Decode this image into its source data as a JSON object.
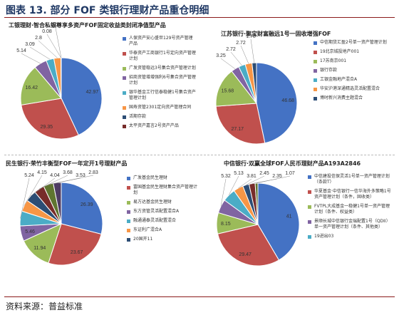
{
  "figure": {
    "title": "图表 13. 部分 FOF 类银行理财产品重仓明细",
    "source": "资料来源：普益标准"
  },
  "chart_data": [
    {
      "type": "pie",
      "title": "工银理财·智合私银尊享多资产FOF固定收益类封闭净值型产品",
      "legend_position": "right",
      "slices": [
        {
          "name": "人保资产安心盛世129号资产管理产品",
          "value": 42.97,
          "color": "#4472c4"
        },
        {
          "name": "华泰资产工商银行1号定向资产管理计划",
          "value": 29.35,
          "color": "#c0504d"
        },
        {
          "name": "广发资管稳远3号集合资产管理计划",
          "value": 16.42,
          "color": "#9bbb59"
        },
        {
          "name": "招商资管增增强利6号集合资产管理计划",
          "value": 5.14,
          "color": "#8064a2"
        },
        {
          "name": "银华基金工行信泰稳健1号集合资产管理计划",
          "value": 3.09,
          "color": "#4bacc6"
        },
        {
          "name": "国寿资管2301定向资产管理合同",
          "value": 2.8,
          "color": "#f79646"
        },
        {
          "name": "活期存款",
          "value": 0.08,
          "color": "#2c4d75"
        },
        {
          "name": "太平资产嘉言2号资产产品",
          "value": 0.06,
          "color": "#772c2a"
        }
      ]
    },
    {
      "type": "pie",
      "title": "江苏银行·聚宝财富融远1号一固收增强FOF",
      "legend_position": "right",
      "slices": [
        {
          "name": "中信期货汇盈2号单一资产管理计划",
          "value": 46.68,
          "color": "#4472c4"
        },
        {
          "name": "19北京城投地产001",
          "value": 27.17,
          "color": "#c0504d"
        },
        {
          "name": "17苏南京001",
          "value": 15.68,
          "color": "#9bbb59"
        },
        {
          "name": "银行存款",
          "value": 3.25,
          "color": "#8064a2"
        },
        {
          "name": "工银金融地产混合A",
          "value": 2.72,
          "color": "#4bacc6"
        },
        {
          "name": "华安沪港深通精选灵活配置混合",
          "value": 2.72,
          "color": "#f79646"
        },
        {
          "name": "博时新兴消费主题混合",
          "value": 1.78,
          "color": "#2c4d75"
        }
      ]
    },
    {
      "type": "pie",
      "title": "民生银行·荣竹丰衡型FOF一年定开1号理财产品",
      "legend_position": "right",
      "slices": [
        {
          "name": "广发基金民生理财",
          "value": 26.39,
          "color": "#4472c4"
        },
        {
          "name": "富国基金民生理财集合资产管理计划",
          "value": 23.67,
          "color": "#c0504d"
        },
        {
          "name": "易方达基金民生理财",
          "value": 11.94,
          "color": "#9bbb59"
        },
        {
          "name": "东方资管灵活配置混合A",
          "value": 5.46,
          "color": "#8064a2"
        },
        {
          "name": "融通通泰灵活配置混合",
          "value": 5.24,
          "color": "#4bacc6"
        },
        {
          "name": "东证利广混合A",
          "value": 4.15,
          "color": "#f79646"
        },
        {
          "name": "20国开11",
          "value": 4.04,
          "color": "#2c4d75"
        },
        {
          "name": "",
          "value": 3.68,
          "color": "#772c2a"
        },
        {
          "name": "",
          "value": 3.53,
          "color": "#5f7530"
        },
        {
          "name": "",
          "value": 2.83,
          "color": "#4d3b62"
        }
      ]
    },
    {
      "type": "pie",
      "title": "中信银行·双赢全球FOF人民币理财产品A193A2846",
      "legend_position": "right",
      "slices": [
        {
          "name": "中信建投信保灵活1号单一资产管理计划（条款T）",
          "value": 41,
          "color": "#4472c4"
        },
        {
          "name": "华夏基金·中信银行一信华海外多策略1号资产管理计划（条件，固收类）",
          "value": 29.47,
          "color": "#c0504d"
        },
        {
          "name": "FVTPL大成基金一稳健1号单一资产管理计划（条件、权益类）",
          "value": 8.15,
          "color": "#9bbb59"
        },
        {
          "name": "景顺长城中信银行金瑞配置1号（QDII）单一资产管理计划（条件、其他类）",
          "value": 5.32,
          "color": "#8064a2"
        },
        {
          "name": "19进出03",
          "value": 5.13,
          "color": "#4bacc6"
        },
        {
          "name": "",
          "value": 3.81,
          "color": "#f79646"
        },
        {
          "name": "",
          "value": 2.45,
          "color": "#2c4d75"
        },
        {
          "name": "",
          "value": 2.35,
          "color": "#772c2a"
        },
        {
          "name": "",
          "value": 1.07,
          "color": "#5f7530"
        }
      ]
    }
  ]
}
